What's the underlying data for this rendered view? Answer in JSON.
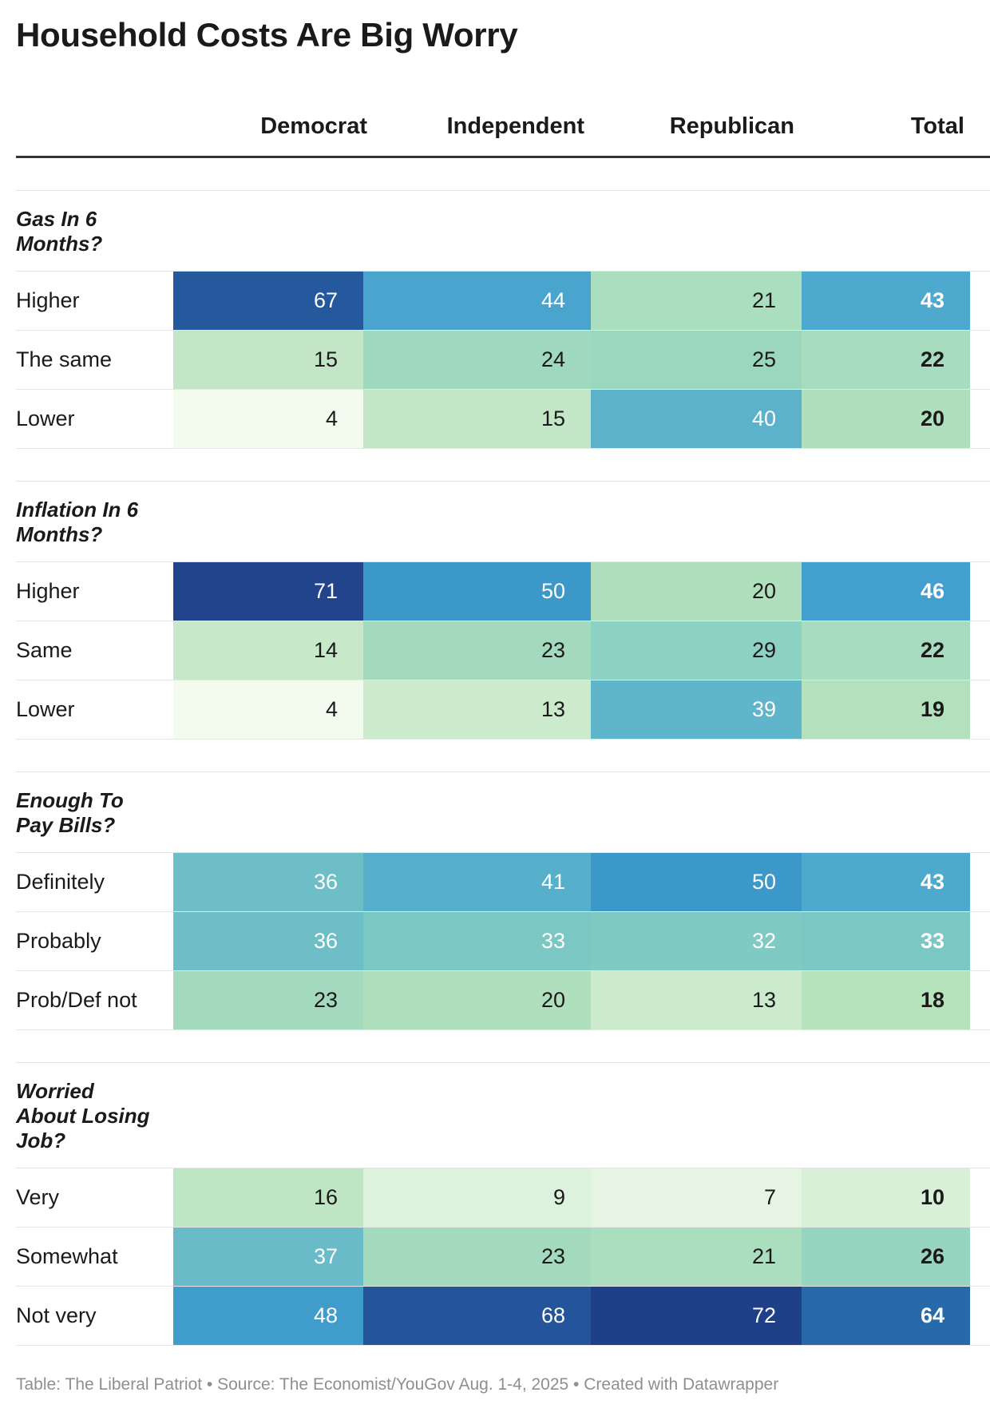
{
  "title": "Household Costs Are Big Worry",
  "columns": [
    "Democrat",
    "Independent",
    "Republican",
    "Total"
  ],
  "footer": "Table: The Liberal Patriot • Source: The Economist/YouGov Aug. 1-4, 2025 • Created with Datawrapper",
  "chart_data": {
    "type": "table",
    "title": "Household Costs Are Big Worry",
    "columns": [
      "Democrat",
      "Independent",
      "Republican",
      "Total"
    ],
    "groups": [
      {
        "name": "Gas In 6\nMonths?",
        "rows": [
          {
            "label": "Higher",
            "values": [
              67,
              44,
              21,
              43
            ]
          },
          {
            "label": "The same",
            "values": [
              15,
              24,
              25,
              22
            ]
          },
          {
            "label": "Lower",
            "values": [
              4,
              15,
              40,
              20
            ]
          }
        ]
      },
      {
        "name": "Inflation In 6\nMonths?",
        "rows": [
          {
            "label": "Higher",
            "values": [
              71,
              50,
              20,
              46
            ]
          },
          {
            "label": "Same",
            "values": [
              14,
              23,
              29,
              22
            ]
          },
          {
            "label": "Lower",
            "values": [
              4,
              13,
              39,
              19
            ]
          }
        ]
      },
      {
        "name": "Enough To\nPay Bills?",
        "rows": [
          {
            "label": "Definitely",
            "values": [
              36,
              41,
              50,
              43
            ]
          },
          {
            "label": "Probably",
            "values": [
              36,
              33,
              32,
              33
            ]
          },
          {
            "label": "Prob/Def not",
            "values": [
              23,
              20,
              13,
              18
            ]
          }
        ]
      },
      {
        "name": "Worried\nAbout Losing\nJob?",
        "rows": [
          {
            "label": "Very",
            "values": [
              16,
              9,
              7,
              10
            ]
          },
          {
            "label": "Somewhat",
            "values": [
              37,
              23,
              21,
              26
            ]
          },
          {
            "label": "Not very",
            "values": [
              48,
              68,
              72,
              64
            ]
          }
        ]
      }
    ],
    "color_scale": [
      "#f3faee",
      "#b8e3bc",
      "#83cdc2",
      "#45a3cf",
      "#2d86c0",
      "#203f89"
    ]
  }
}
